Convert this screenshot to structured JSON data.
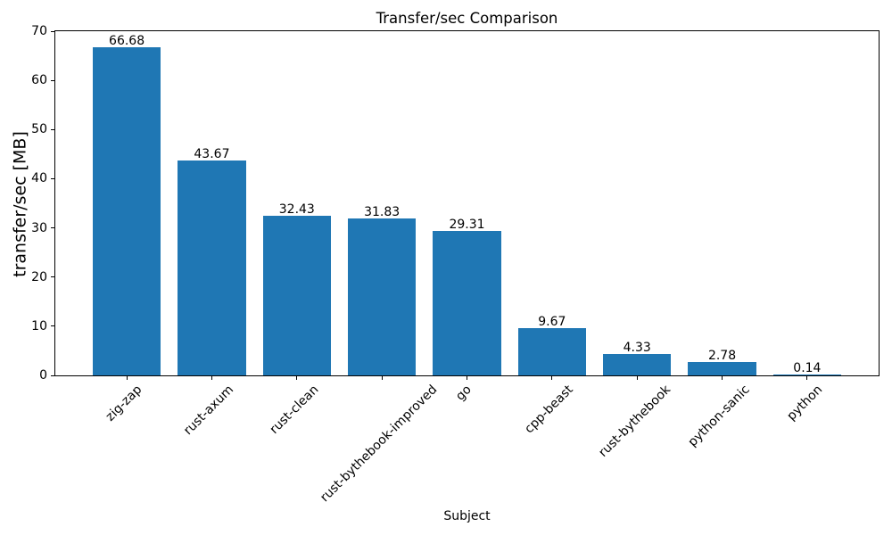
{
  "chart_data": {
    "type": "bar",
    "title": "Transfer/sec Comparison",
    "xlabel": "Subject",
    "ylabel": "transfer/sec [MB]",
    "categories": [
      "zig-zap",
      "rust-axum",
      "rust-clean",
      "rust-bythebook-improved",
      "go",
      "cpp-beast",
      "rust-bythebook",
      "python-sanic",
      "python"
    ],
    "values": [
      66.68,
      43.67,
      32.43,
      31.83,
      29.31,
      9.67,
      4.33,
      2.78,
      0.14
    ],
    "value_labels": [
      "66.68",
      "43.67",
      "32.43",
      "31.83",
      "29.31",
      "9.67",
      "4.33",
      "2.78",
      "0.14"
    ],
    "ylim": [
      0,
      70
    ],
    "yticks": [
      0,
      10,
      20,
      30,
      40,
      50,
      60,
      70
    ],
    "bar_color": "#1f77b4",
    "bar_width_fraction": 0.8,
    "grid": false,
    "legend_position": "none",
    "x_tick_rotation_deg": 45
  }
}
